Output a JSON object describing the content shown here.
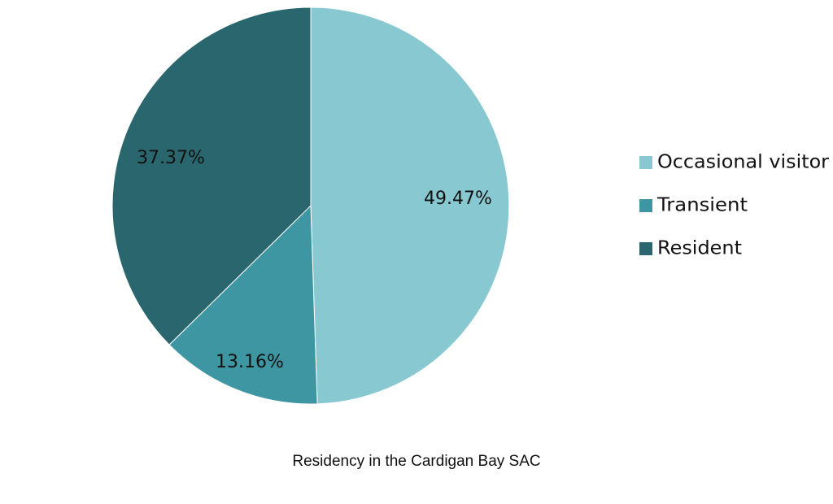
{
  "chart_data": {
    "type": "pie",
    "caption": "Residency in the Cardigan Bay SAC",
    "slices": [
      {
        "name": "Occasional visitor",
        "value": 49.47,
        "label": "49.47%",
        "color": "#88c8d1"
      },
      {
        "name": "Transient",
        "value": 13.16,
        "label": "13.16%",
        "color": "#3d96a1"
      },
      {
        "name": "Resident",
        "value": 37.37,
        "label": "37.37%",
        "color": "#2a666d"
      }
    ],
    "start_angle": "12 o'clock",
    "direction": "clockwise",
    "legend_position": "right"
  }
}
